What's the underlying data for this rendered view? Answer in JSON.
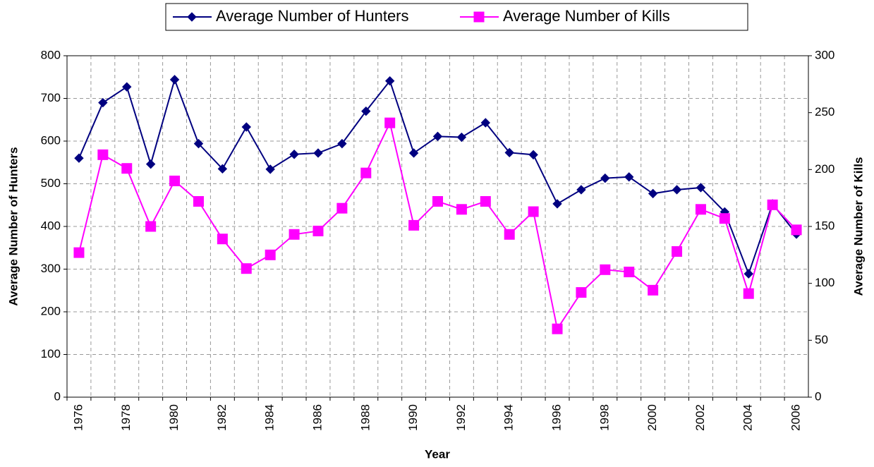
{
  "chart_data": {
    "type": "line",
    "x_label": "Year",
    "y_label": "Average Number of Hunters",
    "y2_label": "Average Number of Kills",
    "categories": [
      "1976",
      null,
      "1978",
      null,
      "1980",
      null,
      "1982",
      null,
      "1984",
      null,
      "1986",
      null,
      "1988",
      null,
      "1990",
      null,
      "1992",
      null,
      "1994",
      null,
      "1996",
      null,
      "1998",
      null,
      "2000",
      null,
      "2002",
      null,
      "2004",
      null,
      "2006"
    ],
    "series": [
      {
        "name": "Average Number of Hunters",
        "color": "#000080",
        "marker": "diamond",
        "values": [
          560,
          690,
          727,
          546,
          744,
          594,
          535,
          633,
          534,
          569,
          572,
          594,
          670,
          741,
          572,
          611,
          609,
          643,
          573,
          568,
          453,
          486,
          513,
          516,
          477,
          486,
          491,
          434,
          289,
          453,
          382
        ]
      },
      {
        "name": "Average Number of Kills",
        "color": "#ff00ff",
        "marker": "square",
        "axis": "y2",
        "values": [
          127,
          213,
          201,
          150,
          190,
          172,
          139,
          113,
          125,
          143,
          146,
          166,
          197,
          241,
          151,
          172,
          165,
          172,
          143,
          163,
          60,
          92,
          112,
          110,
          94,
          128,
          165,
          157,
          91,
          169,
          147
        ]
      }
    ],
    "ylim": [
      0,
      800
    ],
    "yticks": [
      0,
      100,
      200,
      300,
      400,
      500,
      600,
      700,
      800
    ],
    "y2lim": [
      0,
      300
    ],
    "y2ticks": [
      0,
      50,
      100,
      150,
      200,
      250,
      300
    ],
    "grid": true,
    "legend": "top"
  }
}
